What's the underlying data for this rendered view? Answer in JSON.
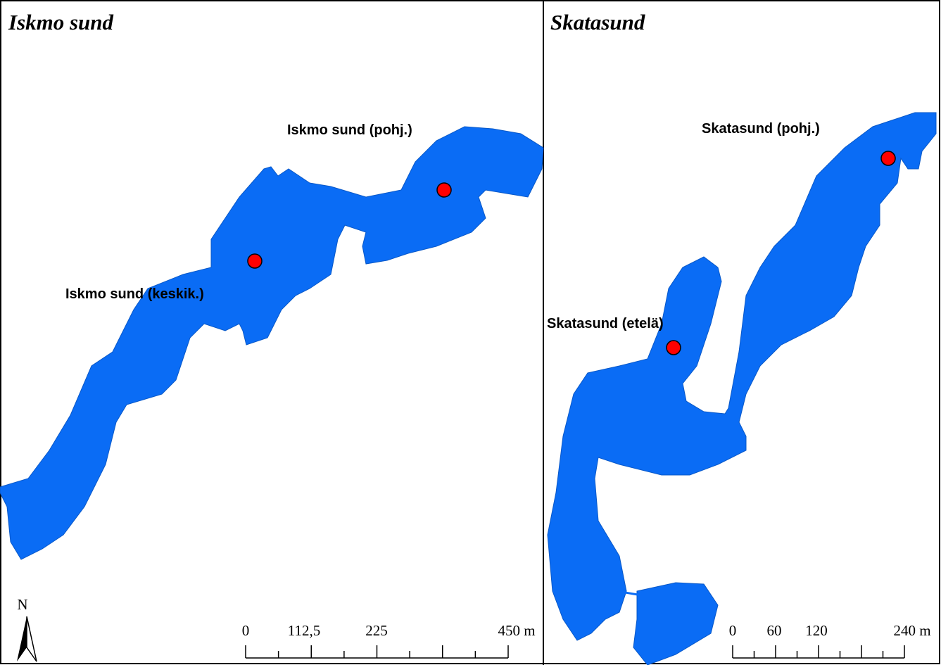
{
  "panels": [
    {
      "title": "Iskmo sund",
      "sites": [
        {
          "label": "Iskmo sund (pohj.)"
        },
        {
          "label": "Iskmo sund (keskik.)"
        }
      ],
      "scale": {
        "labels": [
          "0",
          "112,5",
          "225",
          "450 m"
        ]
      }
    },
    {
      "title": "Skatasund",
      "sites": [
        {
          "label": "Skatasund (pohj.)"
        },
        {
          "label": "Skatasund (etelä)"
        }
      ],
      "scale": {
        "labels": [
          "0",
          "60",
          "120",
          "240 m"
        ]
      }
    }
  ],
  "north": "N"
}
